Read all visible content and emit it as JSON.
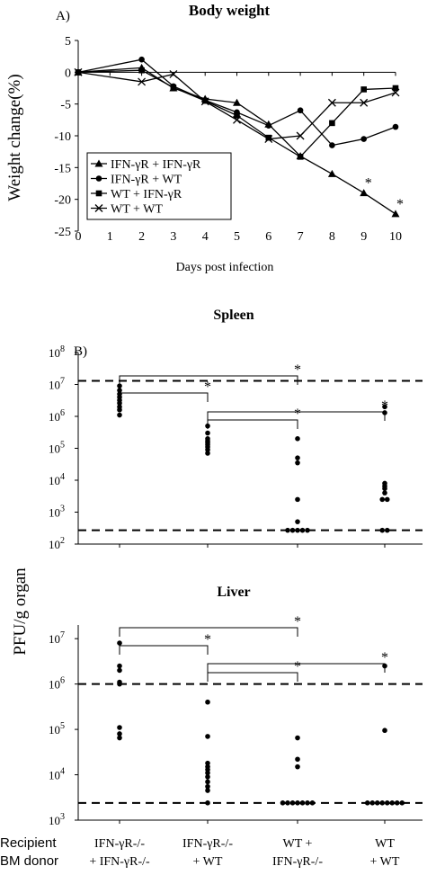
{
  "chart_data": [
    {
      "type": "line",
      "panel_label": "A)",
      "title": "Body weight",
      "xlabel": "Days post infection",
      "ylabel": "Weight change(%)",
      "xlim": [
        0,
        10
      ],
      "ylim": [
        -25,
        5
      ],
      "xticks": [
        "0",
        "1",
        "2",
        "3",
        "4",
        "5",
        "6",
        "7",
        "8",
        "9",
        "10"
      ],
      "yticks": [
        "5",
        "0",
        "-5",
        "-10",
        "-15",
        "-20",
        "-25"
      ],
      "legend_position": "bottom-left",
      "series": [
        {
          "name": "IFN-γR + IFN-γR",
          "marker": "triangle",
          "x": [
            0,
            2,
            3,
            4,
            5,
            6,
            7,
            8,
            9,
            10
          ],
          "y": [
            0,
            0.7,
            -2.5,
            -4.2,
            -4.8,
            -8.2,
            -13.2,
            -16,
            -19,
            -22.3
          ]
        },
        {
          "name": "IFN-γR + WT",
          "marker": "circle",
          "x": [
            0,
            2,
            3,
            4,
            5,
            6,
            7,
            8,
            9,
            10
          ],
          "y": [
            0,
            2.0,
            -2.2,
            -4.4,
            -6.3,
            -8.4,
            -6.0,
            -11.5,
            -10.5,
            -8.6
          ]
        },
        {
          "name": "WT + IFN-γR",
          "marker": "square",
          "x": [
            0,
            2,
            3,
            4,
            5,
            6,
            7,
            8,
            9,
            10
          ],
          "y": [
            0,
            0.3,
            -2.4,
            -4.5,
            -6.8,
            -10.3,
            -13.3,
            -8.0,
            -2.7,
            -2.5
          ]
        },
        {
          "name": "WT + WT",
          "marker": "x",
          "x": [
            0,
            2,
            3,
            4,
            5,
            6,
            7,
            8,
            9,
            10
          ],
          "y": [
            0,
            -1.5,
            -0.3,
            -4.6,
            -7.5,
            -10.5,
            -10.0,
            -4.8,
            -4.8,
            -3.2
          ]
        }
      ],
      "significance": [
        {
          "x": 9,
          "y": -19,
          "label": "*"
        },
        {
          "x": 10,
          "y": -22.3,
          "label": "*"
        }
      ]
    },
    {
      "type": "scatter",
      "panel_label": "B)",
      "title": "Spleen",
      "ylabel": "PFU/g organ",
      "yscale": "log",
      "ylim": [
        100,
        100000000
      ],
      "yticks": [
        {
          "base": "10",
          "exp": "2"
        },
        {
          "base": "10",
          "exp": "3"
        },
        {
          "base": "10",
          "exp": "4"
        },
        {
          "base": "10",
          "exp": "5"
        },
        {
          "base": "10",
          "exp": "6"
        },
        {
          "base": "10",
          "exp": "7"
        },
        {
          "base": "10",
          "exp": "8"
        }
      ],
      "categories": [
        "IFN-γR-/- + IFN-γR-/-",
        "IFN-γR-/- + WT",
        "WT + IFN-γR-/-",
        "WT + WT"
      ],
      "reference_lines": [
        13000000,
        270
      ],
      "groups": [
        [
          1100000,
          1600000,
          2000000,
          2600000,
          3200000,
          4000000,
          5000000,
          6500000,
          9000000
        ],
        [
          70000,
          90000,
          110000,
          130000,
          150000,
          170000,
          200000,
          300000,
          500000
        ],
        [
          270,
          270,
          270,
          270,
          270,
          500,
          2500,
          35000,
          50000,
          200000
        ],
        [
          270,
          270,
          2500,
          2500,
          4000,
          5500,
          6500,
          8000,
          1300000,
          2000000
        ]
      ],
      "brackets": [
        {
          "from": 0,
          "to": 1,
          "label": "*"
        },
        {
          "from": 0,
          "to": 2,
          "label": "*"
        },
        {
          "from": 1,
          "to": 2,
          "label": "*"
        },
        {
          "from": 1,
          "to": 3,
          "label": "*"
        }
      ]
    },
    {
      "type": "scatter",
      "title": "Liver",
      "yscale": "log",
      "ylim": [
        1000,
        20000000
      ],
      "yticks": [
        {
          "base": "10",
          "exp": "3"
        },
        {
          "base": "10",
          "exp": "4"
        },
        {
          "base": "10",
          "exp": "5"
        },
        {
          "base": "10",
          "exp": "6"
        },
        {
          "base": "10",
          "exp": "7"
        }
      ],
      "categories": [
        "IFN-γR-/- + IFN-γR-/-",
        "IFN-γR-/- + WT",
        "WT + IFN-γR-/-",
        "WT + WT"
      ],
      "reference_lines": [
        1000000,
        2400
      ],
      "groups": [
        [
          65000,
          80000,
          110000,
          1000000,
          1100000,
          2000000,
          2500000,
          8000000
        ],
        [
          2400,
          4500,
          5500,
          7000,
          9000,
          11000,
          13000,
          15000,
          18000,
          70000,
          400000
        ],
        [
          2400,
          2400,
          2400,
          2400,
          2400,
          2400,
          2400,
          15000,
          22000,
          65000
        ],
        [
          2400,
          2400,
          2400,
          2400,
          2400,
          2400,
          2400,
          2400,
          95000,
          2500000
        ]
      ],
      "brackets": [
        {
          "from": 0,
          "to": 1,
          "label": "*"
        },
        {
          "from": 0,
          "to": 2,
          "label": "*"
        },
        {
          "from": 1,
          "to": 2,
          "label": "*"
        },
        {
          "from": 1,
          "to": 3,
          "label": "*"
        }
      ]
    }
  ],
  "row_labels": {
    "recipient": "Recipient",
    "bm_donor": "BM donor"
  },
  "x_group_labels": [
    {
      "line1": "IFN-γR-/-",
      "line2": "+ IFN-γR-/-"
    },
    {
      "line1": "IFN-γR-/-",
      "line2": "+ WT"
    },
    {
      "line1": "WT +",
      "line2": "IFN-γR-/-"
    },
    {
      "line1": "WT",
      "line2": "+ WT"
    }
  ]
}
